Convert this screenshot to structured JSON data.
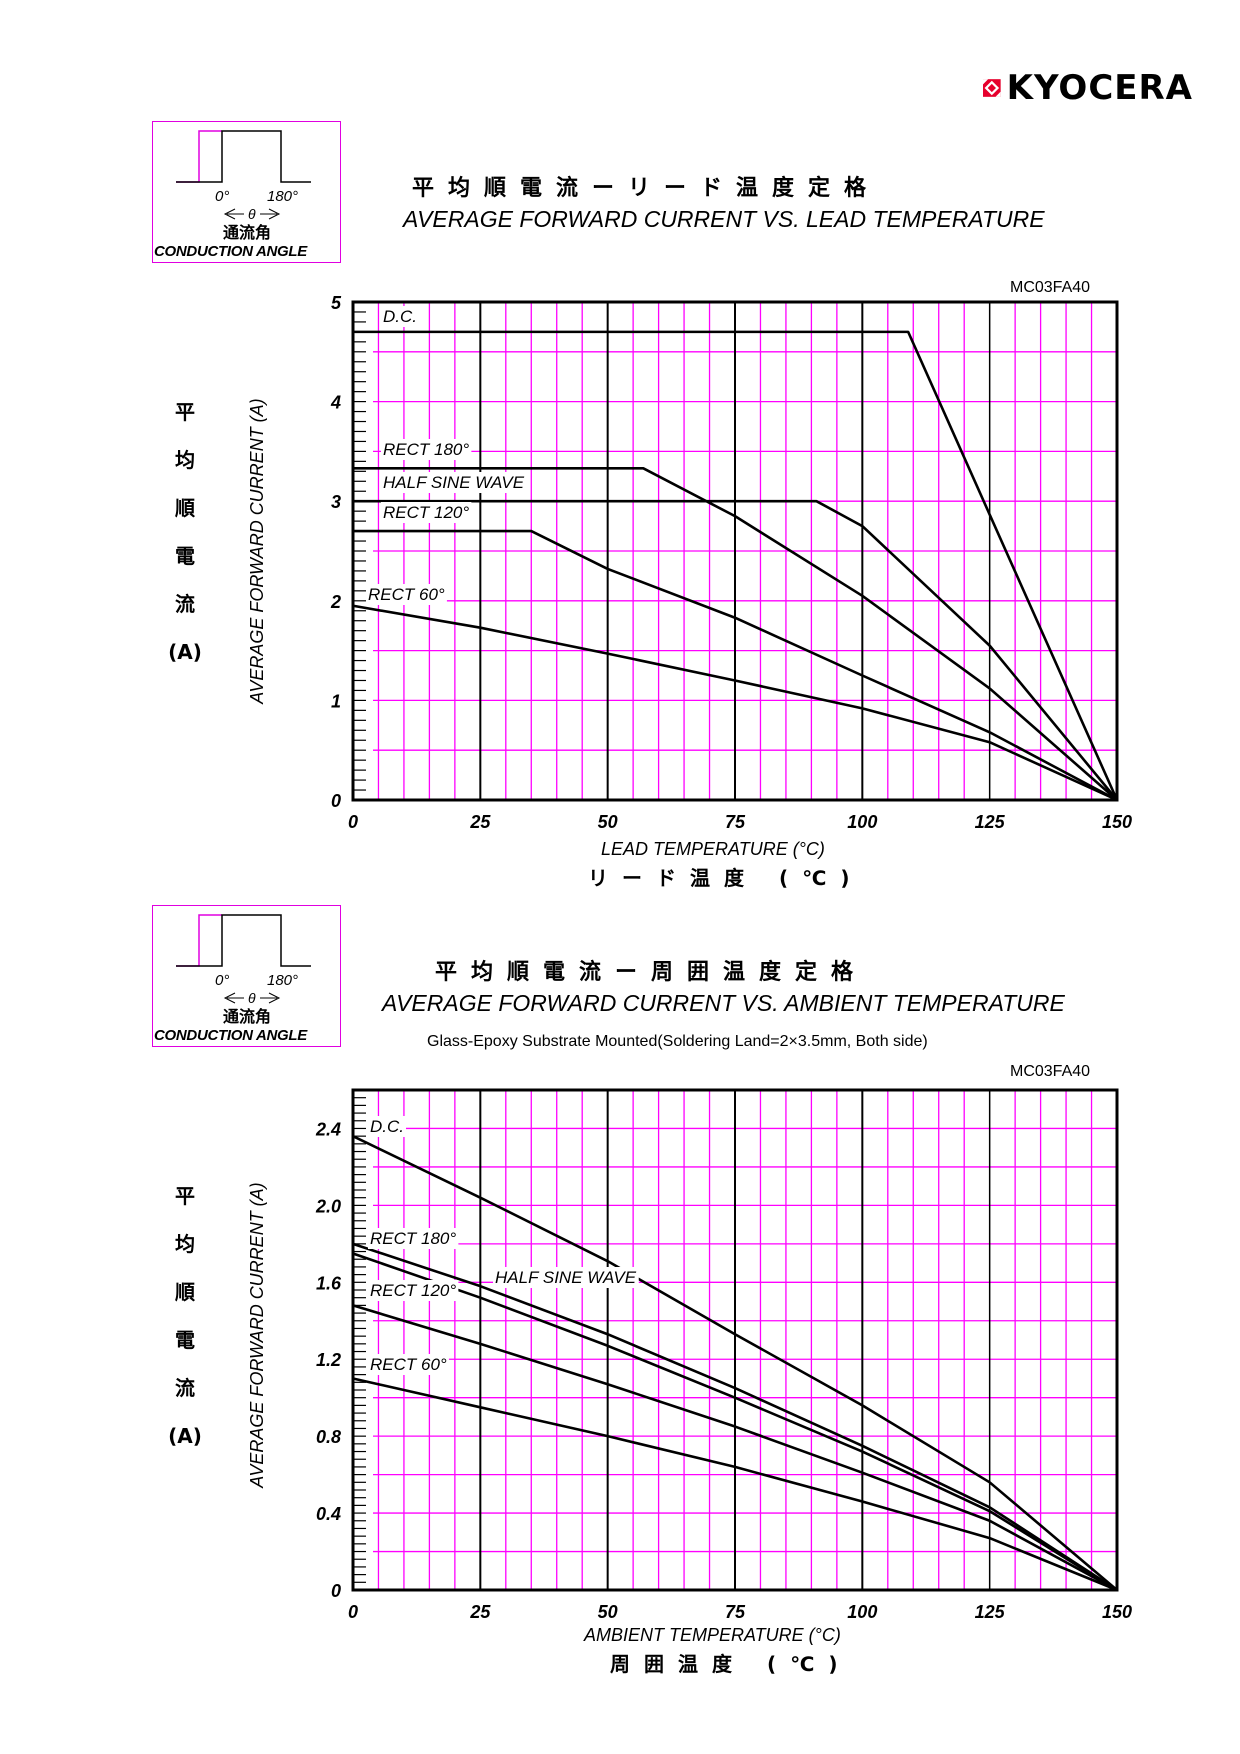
{
  "brand": {
    "name": "KYOCERA",
    "logo_color": "#e6002d"
  },
  "conduction_box": {
    "zero_label": "0°",
    "end_label": "180°",
    "theta_label": "θ",
    "label_jp": "通流角",
    "label_en": "CONDUCTION ANGLE"
  },
  "colors": {
    "grid": "#ff00ff",
    "curve": "#000000",
    "box_border": "#e000e0"
  },
  "chart_data": [
    {
      "type": "line",
      "title_jp": "平均順電流ーリード温度定格",
      "title": "AVERAGE FORWARD CURRENT VS. LEAD TEMPERATURE",
      "part_number": "MC03FA40",
      "xlabel": "LEAD TEMPERATURE (°C)",
      "xlabel_jp": "リード温度 (℃)",
      "ylabel": "AVERAGE FORWARD CURRENT (A)",
      "ylabel_jp": [
        "平",
        "均",
        "順",
        "電",
        "流",
        "(A)"
      ],
      "xlim": [
        0,
        150
      ],
      "ylim": [
        0,
        5
      ],
      "xticks": [
        "0",
        "25",
        "50",
        "75",
        "100",
        "125",
        "150"
      ],
      "yticks": [
        "0",
        "1",
        "2",
        "3",
        "4",
        "5"
      ],
      "grid": true,
      "series": [
        {
          "name": "D.C.",
          "x": [
            0,
            109,
            150
          ],
          "y": [
            4.7,
            4.7,
            0
          ]
        },
        {
          "name": "RECT 180°",
          "x": [
            0,
            57,
            75,
            100,
            125,
            150
          ],
          "y": [
            3.33,
            3.33,
            2.85,
            2.05,
            1.12,
            0
          ]
        },
        {
          "name": "HALF SINE WAVE",
          "x": [
            0,
            91,
            100,
            125,
            150
          ],
          "y": [
            3.0,
            3.0,
            2.75,
            1.55,
            0
          ]
        },
        {
          "name": "RECT 120°",
          "x": [
            0,
            35,
            50,
            75,
            100,
            125,
            150
          ],
          "y": [
            2.7,
            2.7,
            2.32,
            1.83,
            1.25,
            0.68,
            0
          ]
        },
        {
          "name": "RECT 60°",
          "x": [
            0,
            25,
            50,
            75,
            100,
            125,
            150
          ],
          "y": [
            1.95,
            1.73,
            1.47,
            1.2,
            0.92,
            0.58,
            0
          ]
        }
      ]
    },
    {
      "type": "line",
      "title_jp": "平均順電流ー周囲温度定格",
      "title": "AVERAGE FORWARD CURRENT VS. AMBIENT TEMPERATURE",
      "subtitle": "Glass-Epoxy Substrate Mounted(Soldering Land=2×3.5mm, Both side)",
      "part_number": "MC03FA40",
      "xlabel": "AMBIENT TEMPERATURE (°C)",
      "xlabel_jp": "周囲温度 (℃)",
      "ylabel": "AVERAGE FORWARD CURRENT (A)",
      "ylabel_jp": [
        "平",
        "均",
        "順",
        "電",
        "流",
        "(A)"
      ],
      "xlim": [
        0,
        150
      ],
      "ylim": [
        0,
        2.6
      ],
      "xticks": [
        "0",
        "25",
        "50",
        "75",
        "100",
        "125",
        "150"
      ],
      "yticks": [
        "0",
        "0.4",
        "0.8",
        "1.2",
        "1.6",
        "2.0",
        "2.4"
      ],
      "grid": true,
      "series": [
        {
          "name": "D.C.",
          "x": [
            0,
            25,
            50,
            75,
            100,
            125,
            150
          ],
          "y": [
            2.36,
            2.04,
            1.71,
            1.33,
            0.96,
            0.56,
            0
          ]
        },
        {
          "name": "RECT 180°",
          "x": [
            0,
            25,
            50,
            75,
            100,
            125,
            150
          ],
          "y": [
            1.8,
            1.58,
            1.33,
            1.05,
            0.75,
            0.43,
            0
          ]
        },
        {
          "name": "HALF SINE WAVE",
          "x": [
            0,
            25,
            50,
            75,
            100,
            125,
            150
          ],
          "y": [
            1.75,
            1.52,
            1.27,
            1.0,
            0.72,
            0.41,
            0
          ]
        },
        {
          "name": "RECT 120°",
          "x": [
            0,
            25,
            50,
            75,
            100,
            125,
            150
          ],
          "y": [
            1.48,
            1.28,
            1.07,
            0.85,
            0.61,
            0.36,
            0
          ]
        },
        {
          "name": "RECT 60°",
          "x": [
            0,
            25,
            50,
            75,
            100,
            125,
            150
          ],
          "y": [
            1.1,
            0.95,
            0.8,
            0.64,
            0.46,
            0.27,
            0
          ]
        }
      ]
    }
  ]
}
